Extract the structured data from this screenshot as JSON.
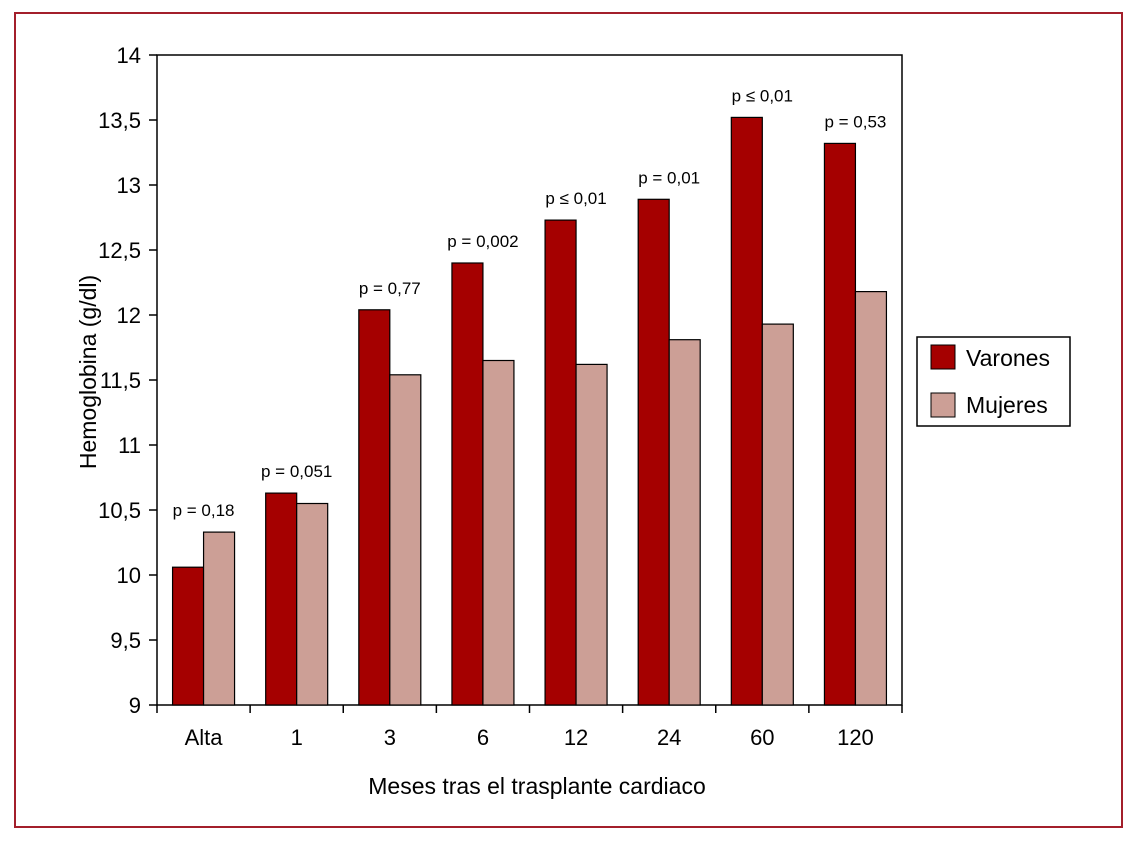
{
  "chart_data": {
    "type": "bar",
    "title": "",
    "xlabel": "Meses tras el trasplante cardiaco",
    "ylabel": "Hemoglobina (g/dl)",
    "ylim": [
      9,
      14
    ],
    "yticks": [
      "9",
      "9,5",
      "10",
      "10,5",
      "11",
      "11,5",
      "12",
      "12,5",
      "13",
      "13,5",
      "14"
    ],
    "categories": [
      "Alta",
      "1",
      "3",
      "6",
      "12",
      "24",
      "60",
      "120"
    ],
    "series": [
      {
        "name": "Varones",
        "color": "#a50000",
        "values": [
          10.06,
          10.63,
          12.04,
          12.4,
          12.73,
          12.89,
          13.52,
          13.32
        ]
      },
      {
        "name": "Mujeres",
        "color": "#cc9f96",
        "values": [
          10.33,
          10.55,
          11.54,
          11.65,
          11.62,
          11.81,
          11.93,
          12.18
        ]
      }
    ],
    "annotations": [
      "p = 0,18",
      "p = 0,051",
      "p = 0,77",
      "p = 0,002",
      "p ≤ 0,01",
      "p = 0,01",
      "p ≤ 0,01",
      "p = 0,53"
    ],
    "legend_position": "right",
    "grid": false
  }
}
